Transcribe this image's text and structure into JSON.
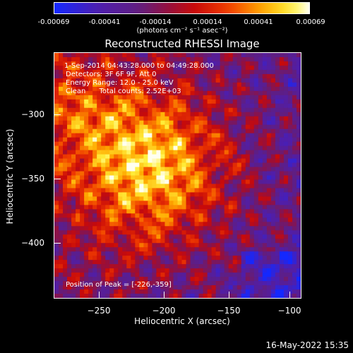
{
  "colorbar": {
    "ticks": [
      "-0.00069",
      "-0.00041",
      "-0.00014",
      "0.00014",
      "0.00041",
      "0.00069"
    ],
    "units": "(photons cm⁻² s⁻¹ asec⁻²)"
  },
  "title": "Reconstructed RHESSI Image",
  "annotations": {
    "time": "1-Sep-2014 04:43:28.000 to 04:49:28.000",
    "detectors": "Detectors: 3F 6F 9F, Att 0",
    "energy": "Energy Range: 12.0 - 25.0 keV",
    "clean": "Clean      Total counts: 2.52E+03",
    "peak": "Position of Peak = [-226,-359]"
  },
  "chart_data": {
    "type": "heatmap",
    "title": "Reconstructed RHESSI Image",
    "xlabel": "Heliocentric X (arcsec)",
    "ylabel": "Heliocentric Y (arcsec)",
    "x_ticks": [
      "−250",
      "−200",
      "−150",
      "−100"
    ],
    "y_ticks": [
      "−300",
      "−350",
      "−400"
    ],
    "xlim": [
      -285,
      -95
    ],
    "ylim": [
      -445,
      -265
    ],
    "colorbar_range": [
      -0.00069,
      0.00069
    ],
    "peak": [
      -226,
      -359
    ]
  },
  "timestamp": "16-May-2022 15:35",
  "colors": {
    "background": "#000000",
    "text": "#ffffff"
  }
}
